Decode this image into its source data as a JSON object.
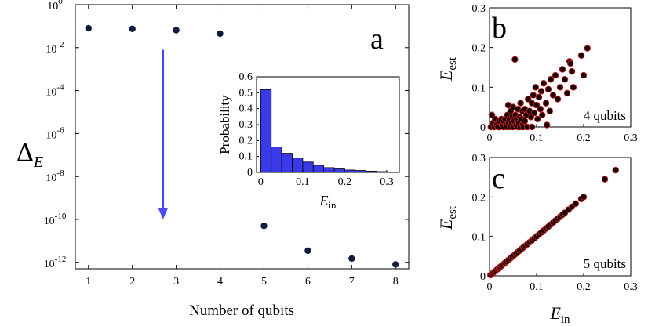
{
  "chart_data": [
    {
      "panel": "a",
      "type": "scatter",
      "xlabel": "Number of qubits",
      "ylabel_main": "Δ",
      "ylabel_sub": "E",
      "x": [
        1,
        2,
        3,
        4,
        5,
        6,
        7,
        8
      ],
      "values": [
        0.08,
        0.075,
        0.065,
        0.045,
        5e-11,
        3.5e-12,
        1.5e-12,
        8e-13
      ],
      "x_ticks": [
        "1",
        "2",
        "3",
        "4",
        "5",
        "6",
        "7",
        "8"
      ],
      "y_ticks": [
        {
          "base": "10",
          "exp": "0",
          "value": 1
        },
        {
          "base": "10",
          "exp": "-2",
          "value": 0.01
        },
        {
          "base": "10",
          "exp": "-4",
          "value": 0.0001
        },
        {
          "base": "10",
          "exp": "-6",
          "value": 1e-06
        },
        {
          "base": "10",
          "exp": "-8",
          "value": 1e-08
        },
        {
          "base": "10",
          "exp": "-10",
          "value": 1e-10
        },
        {
          "base": "10",
          "exp": "-12",
          "value": 1e-12
        }
      ],
      "xlim": [
        0.7,
        8.3
      ],
      "ylim": [
        5e-13,
        1
      ],
      "yscale": "log",
      "marker_color": "#0f1a3d",
      "arrow_color": "#4a4af2",
      "arrow": {
        "x": 2.7,
        "y_from": 0.008,
        "y_to": 1e-10
      },
      "inset": {
        "type": "bar",
        "xlabel_main": "E",
        "xlabel_sub": "in",
        "ylabel": "Probability",
        "bin_width": 0.025,
        "bin_starts": [
          0,
          0.025,
          0.05,
          0.075,
          0.1,
          0.125,
          0.15,
          0.175,
          0.2,
          0.225,
          0.25,
          0.275,
          0.3
        ],
        "values": [
          0.52,
          0.16,
          0.12,
          0.09,
          0.065,
          0.045,
          0.03,
          0.022,
          0.015,
          0.012,
          0.008,
          0.005,
          0.003
        ],
        "x_ticks": [
          {
            "label": "0",
            "value": 0
          },
          {
            "label": "0.1",
            "value": 0.1
          },
          {
            "label": "0.2",
            "value": 0.2
          },
          {
            "label": "0.3",
            "value": 0.3
          }
        ],
        "y_ticks": [
          {
            "label": "0",
            "value": 0
          },
          {
            "label": "0.1",
            "value": 0.1
          },
          {
            "label": "0.2",
            "value": 0.2
          },
          {
            "label": "0.3",
            "value": 0.3
          },
          {
            "label": "0.4",
            "value": 0.4
          },
          {
            "label": "0.5",
            "value": 0.5
          },
          {
            "label": "0.6",
            "value": 0.6
          }
        ],
        "xlim": [
          -0.01,
          0.33
        ],
        "ylim": [
          0,
          0.6
        ],
        "bar_color": "#3a3ae8"
      }
    },
    {
      "panel": "b",
      "type": "scatter",
      "annotation": "4 qubits",
      "ylabel_main": "E",
      "ylabel_sub": "est",
      "xlim": [
        0,
        0.3
      ],
      "ylim": [
        0,
        0.3
      ],
      "x_ticks": [
        {
          "label": "0",
          "value": 0
        },
        {
          "label": "0.1",
          "value": 0.1
        },
        {
          "label": "0.2",
          "value": 0.2
        },
        {
          "label": "0.3",
          "value": 0.3
        }
      ],
      "y_ticks": [
        {
          "label": "0",
          "value": 0
        },
        {
          "label": "0.1",
          "value": 0.1
        },
        {
          "label": "0.2",
          "value": 0.2
        },
        {
          "label": "0.3",
          "value": 0.3
        }
      ],
      "marker_fill": "#1a0505",
      "marker_edge": "#c42020",
      "points": [
        [
          0.003,
          0.0
        ],
        [
          0.005,
          0.03
        ],
        [
          0.008,
          0.01
        ],
        [
          0.01,
          0.0
        ],
        [
          0.012,
          0.02
        ],
        [
          0.015,
          0.005
        ],
        [
          0.018,
          0.0
        ],
        [
          0.02,
          0.015
        ],
        [
          0.022,
          0.0
        ],
        [
          0.025,
          0.02
        ],
        [
          0.027,
          0.005
        ],
        [
          0.03,
          0.0
        ],
        [
          0.03,
          0.015
        ],
        [
          0.033,
          0.02
        ],
        [
          0.035,
          0.005
        ],
        [
          0.037,
          0.0
        ],
        [
          0.038,
          0.03
        ],
        [
          0.04,
          0.01
        ],
        [
          0.04,
          0.055
        ],
        [
          0.042,
          0.02
        ],
        [
          0.044,
          0.0
        ],
        [
          0.045,
          0.04
        ],
        [
          0.047,
          0.01
        ],
        [
          0.048,
          0.025
        ],
        [
          0.05,
          0.0
        ],
        [
          0.05,
          0.05
        ],
        [
          0.052,
          0.015
        ],
        [
          0.054,
          0.17
        ],
        [
          0.055,
          0.03
        ],
        [
          0.056,
          0.005
        ],
        [
          0.058,
          0.02
        ],
        [
          0.06,
          0.0
        ],
        [
          0.06,
          0.045
        ],
        [
          0.062,
          0.01
        ],
        [
          0.064,
          0.025
        ],
        [
          0.065,
          0.0
        ],
        [
          0.066,
          0.06
        ],
        [
          0.068,
          0.02
        ],
        [
          0.07,
          0.005
        ],
        [
          0.07,
          0.04
        ],
        [
          0.072,
          0.0
        ],
        [
          0.075,
          0.015
        ],
        [
          0.075,
          0.045
        ],
        [
          0.078,
          0.03
        ],
        [
          0.08,
          0.0
        ],
        [
          0.082,
          0.07
        ],
        [
          0.085,
          0.04
        ],
        [
          0.088,
          0.025
        ],
        [
          0.09,
          0.0
        ],
        [
          0.09,
          0.06
        ],
        [
          0.093,
          0.08
        ],
        [
          0.095,
          0.035
        ],
        [
          0.098,
          0.1
        ],
        [
          0.1,
          0.055
        ],
        [
          0.102,
          0.02
        ],
        [
          0.105,
          0.075
        ],
        [
          0.108,
          0.045
        ],
        [
          0.11,
          0.09
        ],
        [
          0.112,
          0.03
        ],
        [
          0.115,
          0.11
        ],
        [
          0.12,
          0.06
        ],
        [
          0.122,
          0.005
        ],
        [
          0.125,
          0.095
        ],
        [
          0.128,
          0.04
        ],
        [
          0.13,
          0.12
        ],
        [
          0.135,
          0.08
        ],
        [
          0.14,
          0.13
        ],
        [
          0.145,
          0.07
        ],
        [
          0.15,
          0.1
        ],
        [
          0.155,
          0.145
        ],
        [
          0.16,
          0.12
        ],
        [
          0.165,
          0.085
        ],
        [
          0.17,
          0.165
        ],
        [
          0.172,
          0.16
        ],
        [
          0.175,
          0.14
        ],
        [
          0.178,
          0.1
        ],
        [
          0.195,
          0.18
        ],
        [
          0.2,
          0.13
        ],
        [
          0.208,
          0.198
        ]
      ]
    },
    {
      "panel": "c",
      "type": "scatter",
      "annotation": "5 qubits",
      "xlabel_main": "E",
      "xlabel_sub": "in",
      "ylabel_main": "E",
      "ylabel_sub": "est",
      "xlim": [
        0,
        0.3
      ],
      "ylim": [
        0,
        0.3
      ],
      "x_ticks": [
        {
          "label": "0",
          "value": 0
        },
        {
          "label": "0.1",
          "value": 0.1
        },
        {
          "label": "0.2",
          "value": 0.2
        },
        {
          "label": "0.3",
          "value": 0.3
        }
      ],
      "y_ticks": [
        {
          "label": "0",
          "value": 0
        },
        {
          "label": "0.1",
          "value": 0.1
        },
        {
          "label": "0.2",
          "value": 0.2
        },
        {
          "label": "0.3",
          "value": 0.3
        }
      ],
      "marker_fill": "#1a0505",
      "marker_edge": "#c42020",
      "points": [
        [
          0.002,
          0.002
        ],
        [
          0.005,
          0.005
        ],
        [
          0.008,
          0.008
        ],
        [
          0.011,
          0.011
        ],
        [
          0.014,
          0.014
        ],
        [
          0.017,
          0.017
        ],
        [
          0.02,
          0.02
        ],
        [
          0.023,
          0.023
        ],
        [
          0.026,
          0.026
        ],
        [
          0.03,
          0.03
        ],
        [
          0.033,
          0.033
        ],
        [
          0.036,
          0.036
        ],
        [
          0.04,
          0.04
        ],
        [
          0.044,
          0.044
        ],
        [
          0.048,
          0.048
        ],
        [
          0.052,
          0.052
        ],
        [
          0.056,
          0.056
        ],
        [
          0.06,
          0.06
        ],
        [
          0.064,
          0.064
        ],
        [
          0.068,
          0.068
        ],
        [
          0.072,
          0.072
        ],
        [
          0.076,
          0.076
        ],
        [
          0.08,
          0.08
        ],
        [
          0.085,
          0.085
        ],
        [
          0.09,
          0.09
        ],
        [
          0.095,
          0.095
        ],
        [
          0.1,
          0.1
        ],
        [
          0.105,
          0.105
        ],
        [
          0.11,
          0.11
        ],
        [
          0.115,
          0.115
        ],
        [
          0.12,
          0.12
        ],
        [
          0.125,
          0.125
        ],
        [
          0.13,
          0.13
        ],
        [
          0.135,
          0.135
        ],
        [
          0.14,
          0.14
        ],
        [
          0.145,
          0.145
        ],
        [
          0.15,
          0.15
        ],
        [
          0.155,
          0.155
        ],
        [
          0.16,
          0.16
        ],
        [
          0.168,
          0.168
        ],
        [
          0.175,
          0.175
        ],
        [
          0.183,
          0.183
        ],
        [
          0.195,
          0.195
        ],
        [
          0.2,
          0.2
        ],
        [
          0.245,
          0.245
        ],
        [
          0.268,
          0.268
        ]
      ]
    }
  ],
  "panel_labels": {
    "a": "a",
    "b": "b",
    "c": "c"
  }
}
